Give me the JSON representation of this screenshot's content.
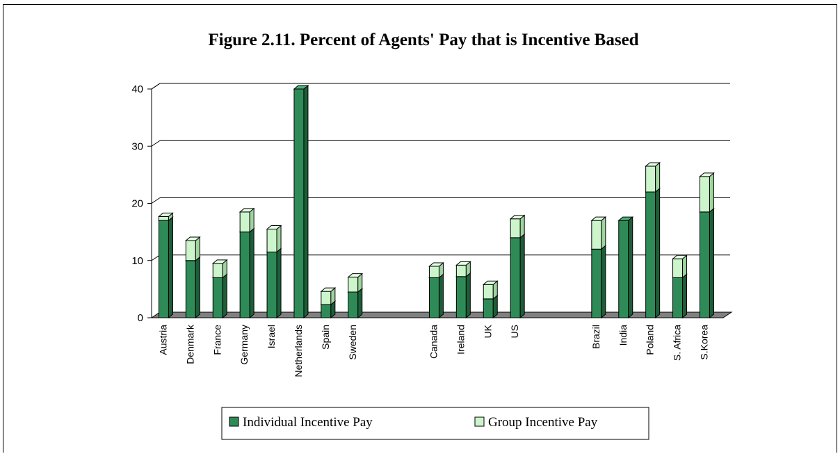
{
  "colors": {
    "individual_front": "#2e8b57",
    "individual_side": "#1d5e38",
    "individual_top": "#4fae7a",
    "group_front": "#ccf5cc",
    "group_side": "#9fd49f",
    "group_top": "#e6fde6",
    "floor": "#808080"
  },
  "chart_data": {
    "type": "bar",
    "stacked": true,
    "title": "Figure 2.11. Percent of Agents' Pay that is Incentive Based",
    "xlabel": "",
    "ylabel": "",
    "ylim": [
      0,
      40
    ],
    "yticks": [
      "0",
      "10",
      "20",
      "30",
      "40"
    ],
    "grid": true,
    "legend_position": "bottom",
    "groups": [
      [
        "Austria",
        "Denmark",
        "France",
        "Germany",
        "Israel",
        "Netherlands",
        "Spain",
        "Sweden"
      ],
      [
        "Canada",
        "Ireland",
        "UK",
        "US"
      ],
      [
        "Brazil",
        "India",
        "Poland",
        "S. Africa",
        "S.Korea"
      ]
    ],
    "categories": [
      "Austria",
      "Denmark",
      "France",
      "Germany",
      "Israel",
      "Netherlands",
      "Spain",
      "Sweden",
      "Canada",
      "Ireland",
      "UK",
      "US",
      "Brazil",
      "India",
      "Poland",
      "S. Africa",
      "S.Korea"
    ],
    "series": [
      {
        "name": "Individual Incentive Pay",
        "values": [
          17,
          10,
          7,
          15,
          11.5,
          40,
          2.3,
          4.5,
          7,
          7.2,
          3.3,
          14,
          12,
          17,
          22,
          7,
          18.5
        ]
      },
      {
        "name": "Group Incentive Pay",
        "values": [
          0.7,
          3.5,
          2.5,
          3.5,
          4,
          0,
          2.3,
          2.6,
          2,
          2,
          2.5,
          3.3,
          5,
          0,
          4.5,
          3.3,
          6.2
        ]
      }
    ]
  }
}
